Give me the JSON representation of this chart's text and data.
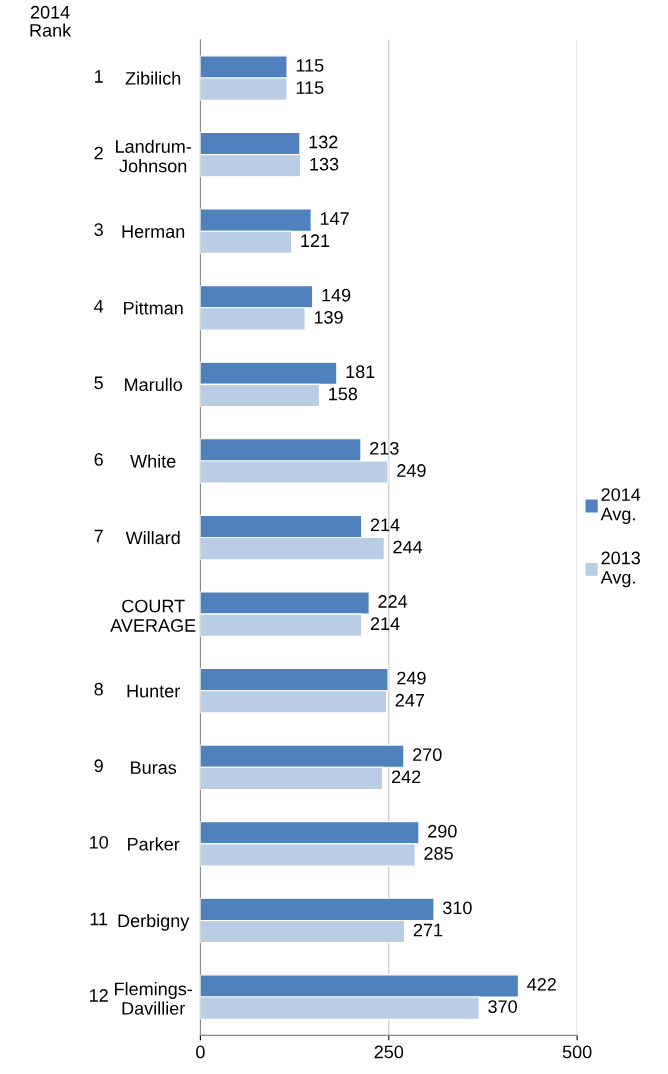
{
  "chart_data": {
    "type": "bar",
    "orientation": "horizontal",
    "categories": [
      "Zibilich",
      "Landrum-\nJohnson",
      "Herman",
      "Pittman",
      "Marullo",
      "White",
      "Willard",
      "COURT\nAVERAGE",
      "Hunter",
      "Buras",
      "Parker",
      "Derbigny",
      "Flemings-\nDavillier"
    ],
    "series": [
      {
        "name": "2014\nAvg.",
        "color": "#4f81bd",
        "values": [
          115,
          132,
          147,
          149,
          181,
          213,
          214,
          224,
          249,
          270,
          290,
          310,
          422
        ]
      },
      {
        "name": "2013\nAvg.",
        "color": "#b9cde5",
        "values": [
          115,
          133,
          121,
          139,
          158,
          249,
          244,
          214,
          247,
          242,
          285,
          271,
          370
        ]
      }
    ],
    "xlim": [
      0,
      500
    ],
    "xticks": [
      0,
      250,
      500
    ],
    "grid": "x",
    "legend": "right",
    "data_labels": true,
    "annotations": [
      "2014\nRank",
      "1",
      "2",
      "3",
      "4",
      "5",
      "6",
      "7",
      null,
      "8",
      "9",
      "10",
      "11",
      "12"
    ]
  }
}
